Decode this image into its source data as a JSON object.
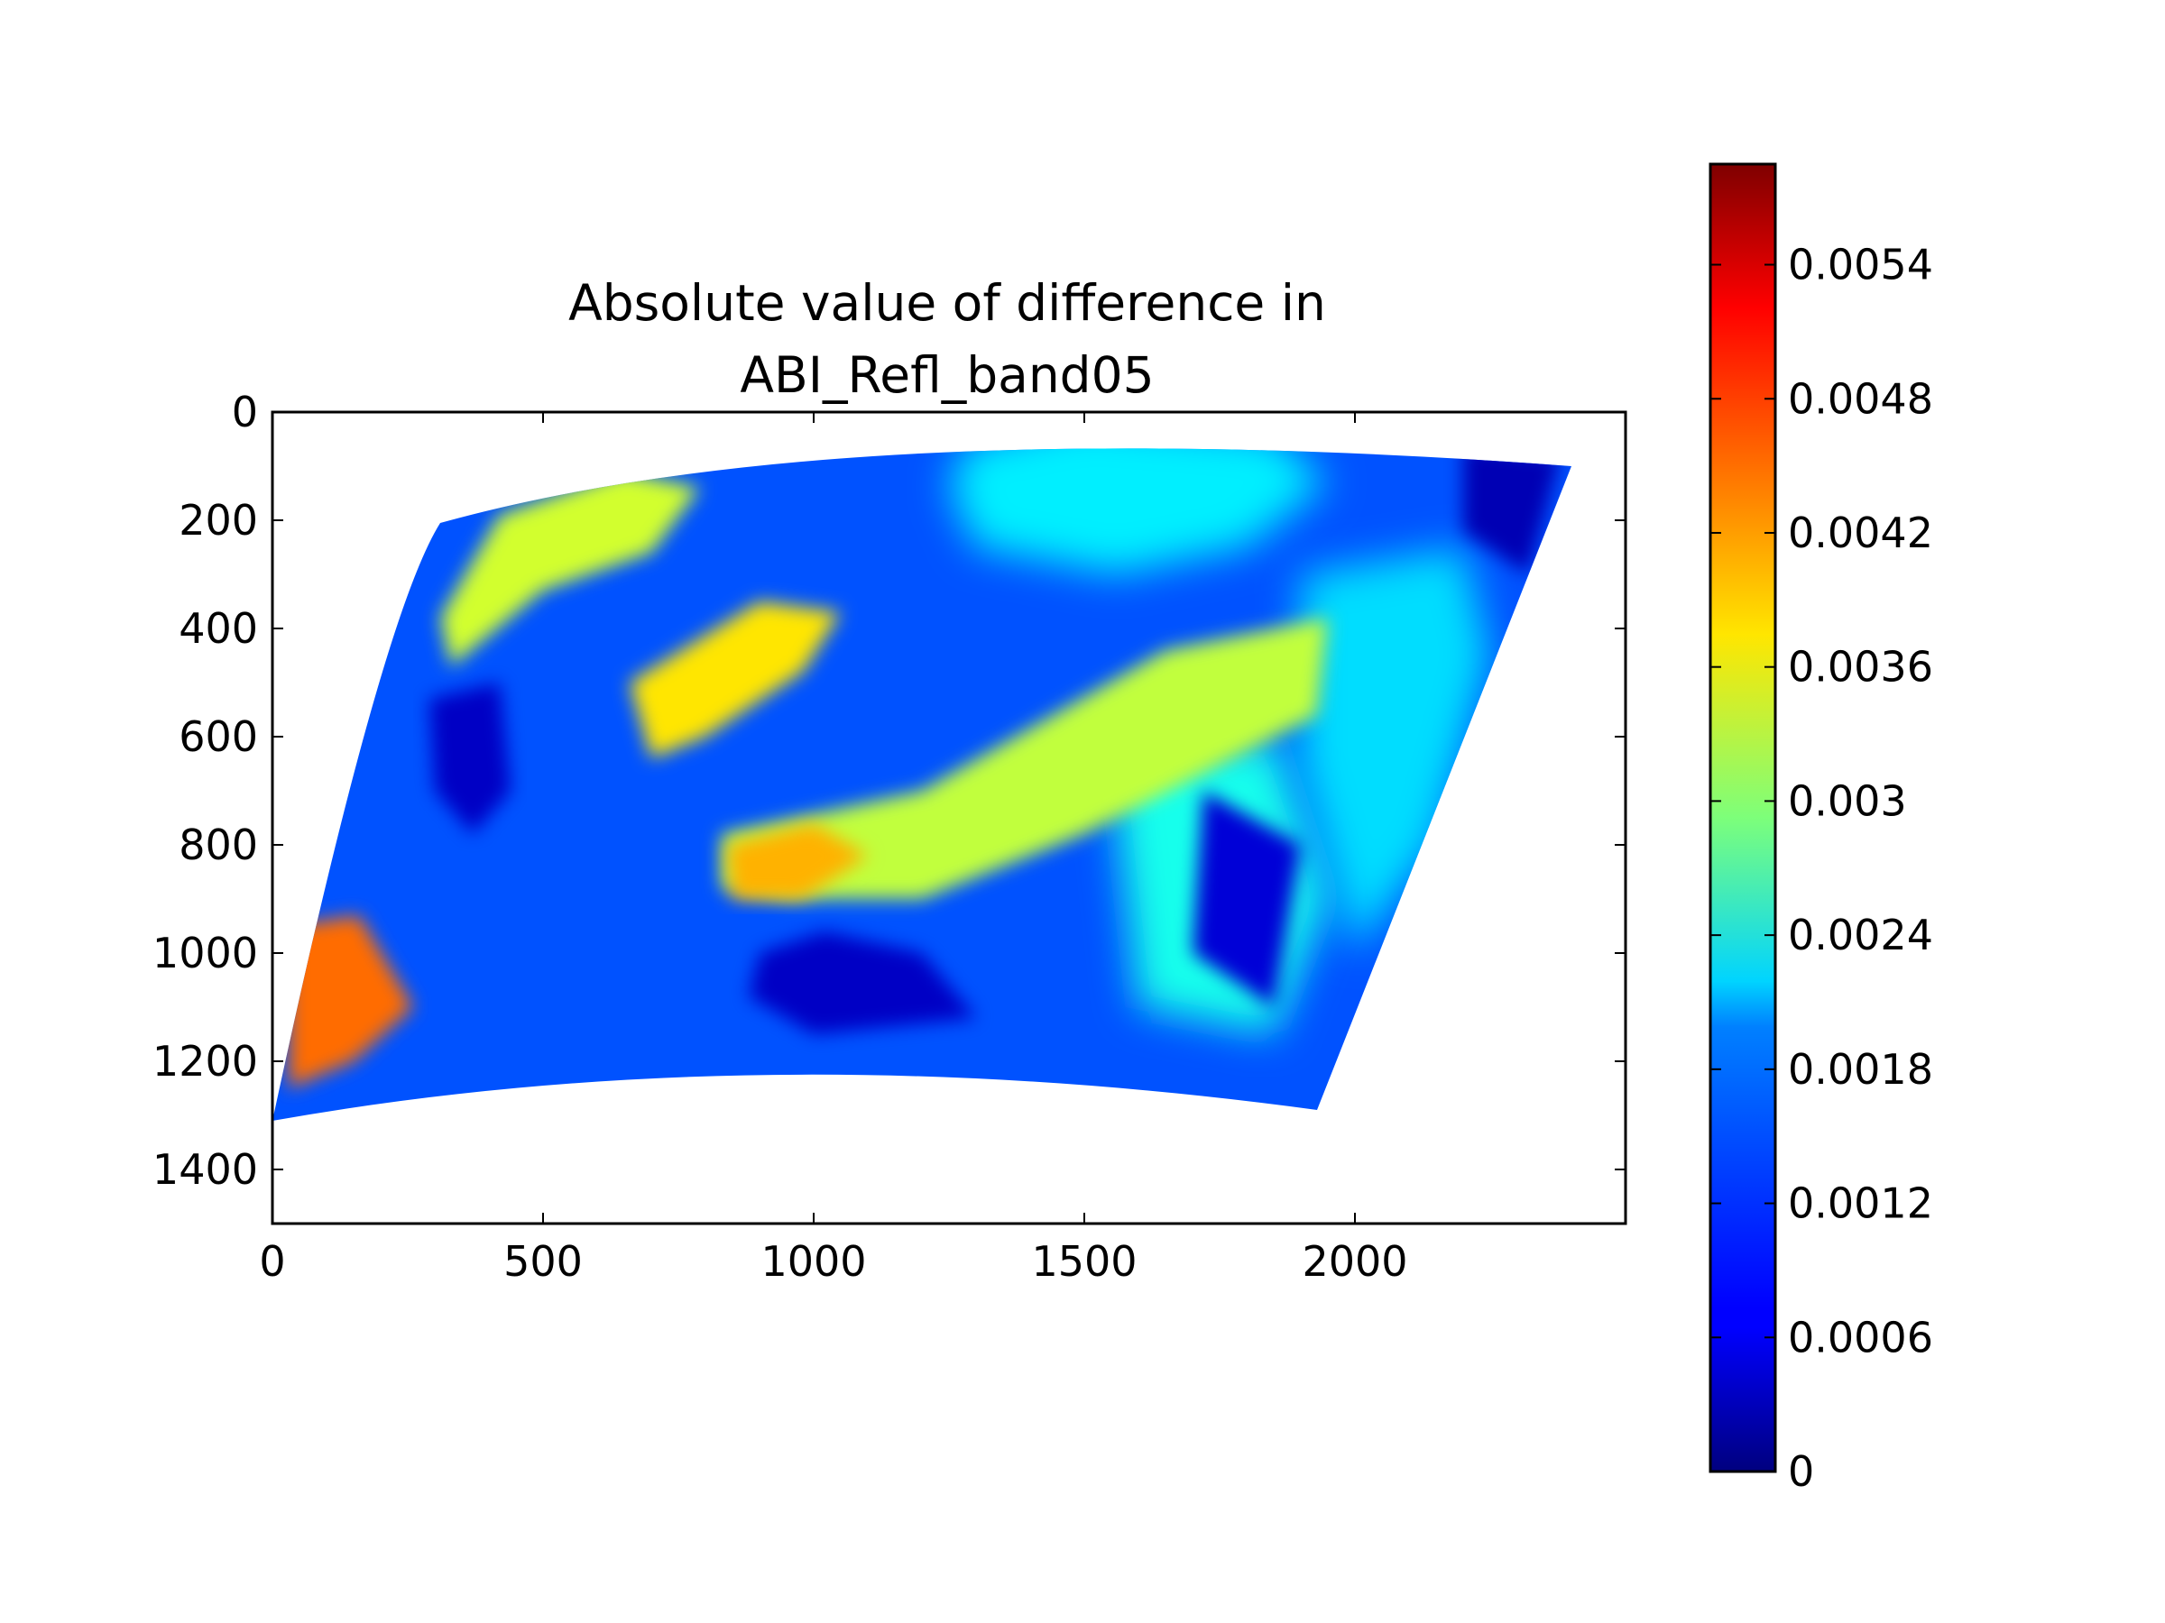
{
  "chart_data": {
    "type": "heatmap",
    "title_lines": [
      "Absolute value of difference in",
      "ABI_Refl_band05"
    ],
    "xlabel": "",
    "ylabel": "",
    "xlim": [
      0,
      2500
    ],
    "ylim": [
      1500,
      0
    ],
    "y_axis_inverted": true,
    "x_ticks": [
      0,
      500,
      1000,
      1500,
      2000
    ],
    "x_tick_labels": [
      "0",
      "500",
      "1000",
      "1500",
      "2000"
    ],
    "y_ticks": [
      0,
      200,
      400,
      600,
      800,
      1000,
      1200,
      1400
    ],
    "y_tick_labels": [
      "0",
      "200",
      "400",
      "600",
      "800",
      "1000",
      "1200",
      "1400"
    ],
    "grid": false,
    "colormap": "jet",
    "colorbar": {
      "vmin": 0,
      "vmax": 0.00585,
      "ticks": [
        0,
        0.0006,
        0.0012,
        0.0018,
        0.0024,
        0.003,
        0.0036,
        0.0042,
        0.0048,
        0.0054
      ],
      "tick_labels": [
        "0",
        "0.0006",
        "0.0012",
        "0.0018",
        "0.0024",
        "0.003",
        "0.0036",
        "0.0042",
        "0.0048",
        "0.0054"
      ]
    },
    "data_extent": {
      "left_top": [
        310,
        205
      ],
      "top_left_arc": [
        200,
        380
      ],
      "bottom_left": [
        0,
        1310
      ],
      "top_mid": [
        1050,
        0
      ],
      "right_top": [
        2400,
        100
      ],
      "bottom_right": [
        1930,
        1290
      ],
      "bottom_mid": [
        900,
        1150
      ]
    },
    "value_regions": [
      {
        "name": "background",
        "value": 0.0012
      },
      {
        "name": "northern-cloud-swirl",
        "value": 0.0021
      },
      {
        "name": "northwest-land-strip",
        "value": 0.0034
      },
      {
        "name": "plains-band",
        "value": 0.0038
      },
      {
        "name": "frontal-cloud-band",
        "value": 0.0033
      },
      {
        "name": "atlantic-cloud-field",
        "value": 0.0023
      },
      {
        "name": "eastern-bright-cloud",
        "value": 0.002
      },
      {
        "name": "southern-orange-patch",
        "value": 0.0041
      },
      {
        "name": "pacific-speckle",
        "value": 0.0045
      },
      {
        "name": "gulf-low",
        "value": 0.0004
      },
      {
        "name": "pacific-low",
        "value": 0.0004
      },
      {
        "name": "atlantic-low",
        "value": 0.0005
      },
      {
        "name": "northeast-corner-low",
        "value": 0.0003
      }
    ]
  }
}
